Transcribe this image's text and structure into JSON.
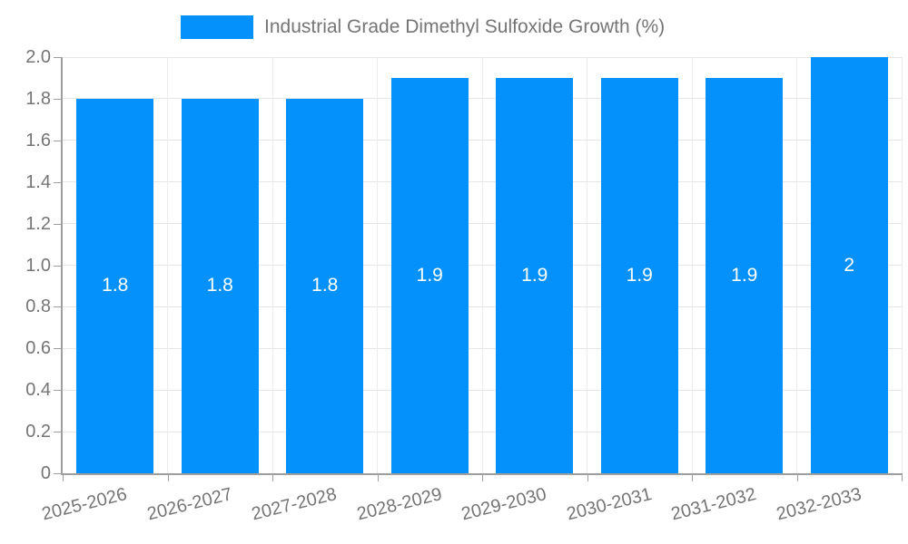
{
  "legend": {
    "label": "Industrial Grade Dimethyl Sulfoxide Growth (%)"
  },
  "chart_data": {
    "type": "bar",
    "title": "Industrial Grade Dimethyl Sulfoxide Growth (%)",
    "categories": [
      "2025-2026",
      "2026-2027",
      "2027-2028",
      "2028-2029",
      "2029-2030",
      "2030-2031",
      "2031-2032",
      "2032-2033"
    ],
    "values": [
      1.8,
      1.8,
      1.8,
      1.9,
      1.9,
      1.9,
      1.9,
      2
    ],
    "bar_labels": [
      "1.8",
      "1.8",
      "1.8",
      "1.9",
      "1.9",
      "1.9",
      "1.9",
      "2"
    ],
    "xlabel": "",
    "ylabel": "",
    "ylim": [
      0,
      2.0
    ],
    "y_tick_step": 0.2,
    "y_tick_labels": [
      "0",
      "0.2",
      "0.4",
      "0.6",
      "0.8",
      "1.0",
      "1.2",
      "1.4",
      "1.6",
      "1.8",
      "2.0"
    ],
    "grid": true,
    "legend_position": "top",
    "x_label_rotation_deg": -14,
    "colors": {
      "bar": "#0591fb",
      "bar_label_text": "#ffffff",
      "axis_line": "#9e9e9e",
      "grid_line": "#e6e6e6",
      "tick_text": "#757575",
      "legend_text": "#757575",
      "background": "#ffffff"
    }
  }
}
